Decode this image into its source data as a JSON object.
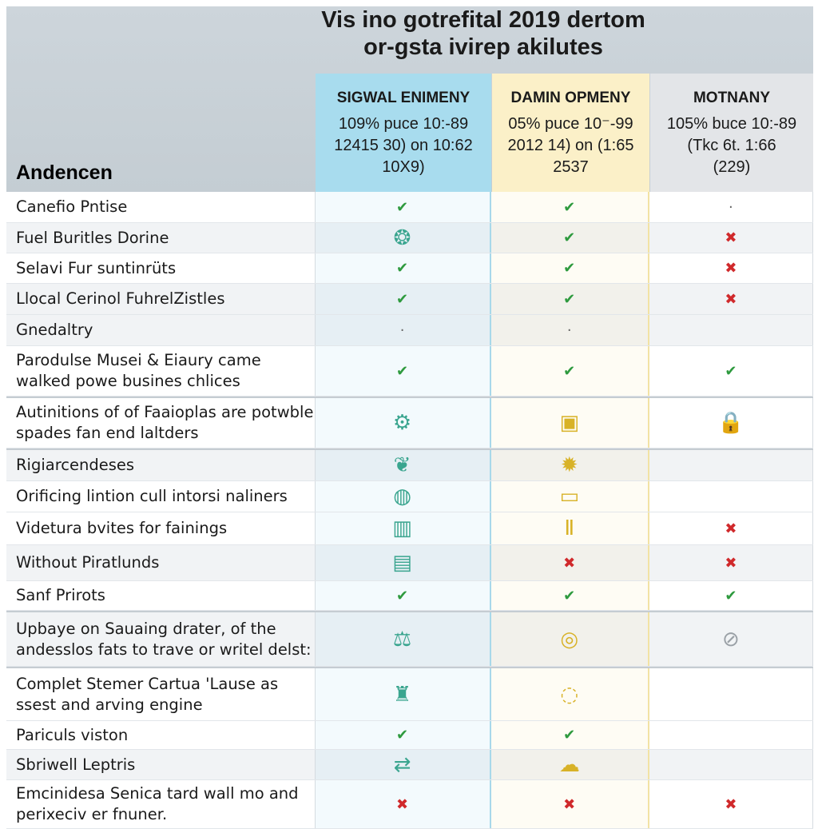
{
  "title": "Vis ino gotrefital 2019 dertom\nor-gsta ivirep akilutes",
  "label_header": "Andencen",
  "columns": [
    {
      "name": "SIGWAL ENIMENY",
      "sub": "109% puce 10:-89\n12415 30) on 10:62\n10X9)",
      "color": "#a8dcee"
    },
    {
      "name": "DAMIN OPMENY",
      "sub": "05% puce 10⁻-99\n2012 14) on (1:65\n2537",
      "color": "#fbf0c8"
    },
    {
      "name": "MOTNANY",
      "sub": "105% buce 10:-89\n(Tkc 6t. 1:66\n(229)",
      "color": "#e3e5e8"
    }
  ],
  "rows": [
    {
      "label": "Canefio Pntise",
      "cells": [
        "check",
        "check",
        "dot"
      ]
    },
    {
      "label": "Fuel Buritles Dorine",
      "cells": [
        "swirl-icon",
        "check",
        "x"
      ]
    },
    {
      "label": "Selavi Fur suntinrüts",
      "cells": [
        "check",
        "check",
        "x"
      ]
    },
    {
      "label": "Llocal Cerinol FuhrelZistles",
      "cells": [
        "check",
        "check",
        "x"
      ]
    },
    {
      "label": "Gnedaltry",
      "cells": [
        "dot",
        "dot",
        ""
      ]
    },
    {
      "label": "Parodulse Musei & Eiaury came walked powe busines chlices",
      "cells": [
        "check",
        "check",
        "check"
      ]
    },
    {
      "label": "Autinitions of of Faaioplas are potwble spades fan end laltders",
      "cells": [
        "robot-icon",
        "box-icon",
        "lock-icon"
      ]
    },
    {
      "label": "Rigiarcendeses",
      "cells": [
        "leaf-icon",
        "gear-icon",
        ""
      ]
    },
    {
      "label": "Orificing lintion cull intorsi naliners",
      "cells": [
        "coins-icon",
        "tray-icon",
        ""
      ]
    },
    {
      "label": "Videtura bvites for fainings",
      "cells": [
        "server-icon",
        "pillars-icon",
        "x"
      ]
    },
    {
      "label": "Without Piratlunds",
      "cells": [
        "document-icon",
        "x",
        "x"
      ]
    },
    {
      "label": "Sanf Prirots",
      "cells": [
        "check",
        "check",
        "check"
      ]
    },
    {
      "label": "Upbaye on Sauaing drater, of the andesslos fats to trave or writel delst:",
      "cells": [
        "scale-dollar-icon",
        "handshake-icon",
        "tools-icon"
      ]
    },
    {
      "label": "Complet Stemer Cartua 'Lause as ssest and arving engine",
      "cells": [
        "factory-icon",
        "chat-icon",
        ""
      ]
    },
    {
      "label": "Pariculs viston",
      "cells": [
        "check",
        "check",
        ""
      ]
    },
    {
      "label": "Sbriwell Leptris",
      "cells": [
        "arrows-icon",
        "cloud-icon",
        ""
      ]
    },
    {
      "label": "Emcinidesa Senica tard wall mo and perixeciv er fnuner.",
      "cells": [
        "x",
        "x",
        "x"
      ]
    }
  ]
}
